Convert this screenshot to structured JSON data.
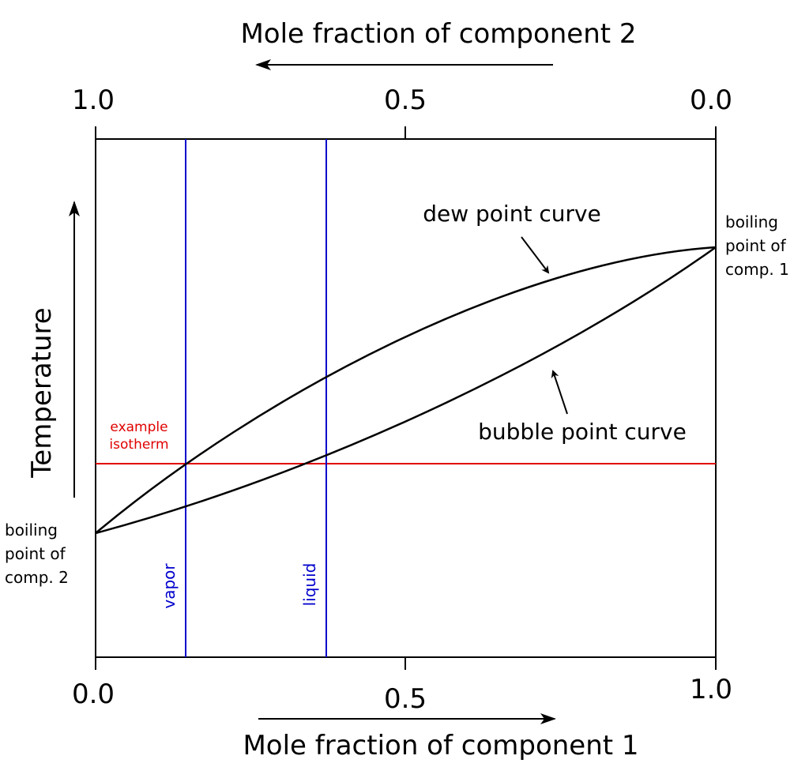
{
  "top_axis": {
    "title": "Mole fraction of component 2",
    "ticks": [
      "1.0",
      "0.5",
      "0.0"
    ]
  },
  "bottom_axis": {
    "title": "Mole fraction of component 1",
    "ticks": [
      "0.0",
      "0.5",
      "1.0"
    ]
  },
  "y_axis": {
    "title": "Temperature"
  },
  "labels": {
    "dew": "dew point curve",
    "bubble": "bubble point curve",
    "isotherm_1": "example",
    "isotherm_2": "isotherm",
    "vapor": "vapor",
    "liquid": "liquid",
    "bp1_1": "boiling",
    "bp1_2": "point of",
    "bp1_3": "comp. 1",
    "bp2_1": "boiling",
    "bp2_2": "point of",
    "bp2_3": "comp. 2"
  },
  "colors": {
    "curves": "#000000",
    "isotherm": "#e00000",
    "tie_lines": "#0000cc"
  }
}
